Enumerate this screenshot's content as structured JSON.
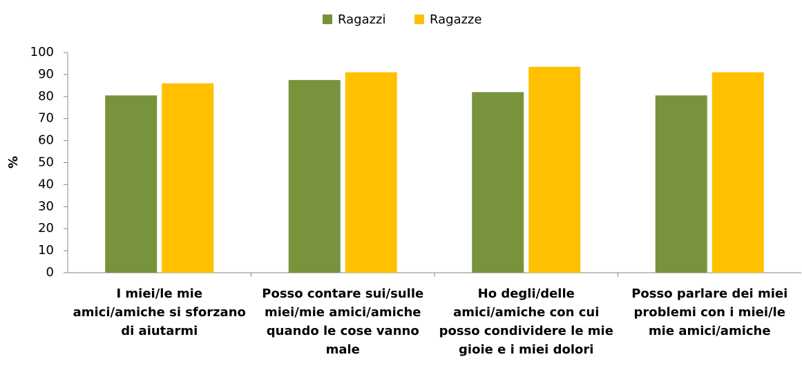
{
  "chart_data": {
    "type": "bar",
    "categories": [
      "I miei/le mie amici/amiche si sforzano di aiutarmi",
      "Posso contare sui/sulle miei/mie amici/amiche quando le cose vanno male",
      "Ho degli/delle amici/amiche con cui posso condividere le mie gioie e i miei dolori",
      "Posso parlare dei miei problemi con i miei/le mie amici/amiche"
    ],
    "series": [
      {
        "name": "Ragazzi",
        "color": "#77933c",
        "values": [
          80.5,
          87.5,
          82,
          80.5
        ]
      },
      {
        "name": "Ragazze",
        "color": "#ffc000",
        "values": [
          86,
          91,
          93.5,
          91
        ]
      }
    ],
    "ylabel": "%",
    "ylim": [
      0,
      100
    ],
    "yticks": [
      0,
      10,
      20,
      30,
      40,
      50,
      60,
      70,
      80,
      90,
      100
    ],
    "legend": "top",
    "grid": false
  }
}
